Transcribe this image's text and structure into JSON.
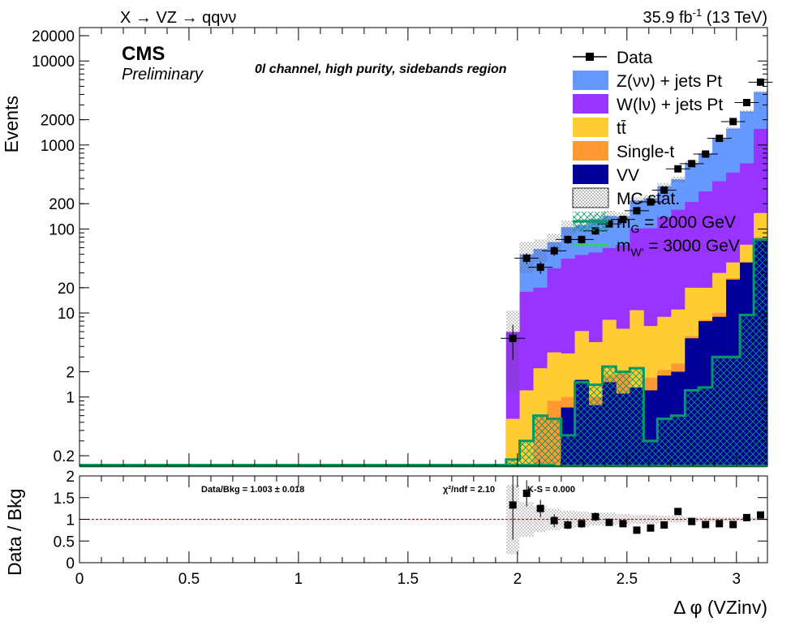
{
  "header": {
    "process": "X → VZ → qqνν",
    "lumi": "35.9 fb",
    "lumi_sup": "-1",
    "energy": " (13 TeV)"
  },
  "labels": {
    "cms": "CMS",
    "preliminary": "Preliminary",
    "channel": "0l channel, high purity, sidebands region",
    "fit_text": "Data/Bkg = 1.003 ± 0.018",
    "chi2_text": "χ²/ndf = 2.10",
    "ks_text": "K-S = 0.000"
  },
  "legend": [
    {
      "key": "data",
      "label": "Data",
      "color": "#000000",
      "kind": "marker"
    },
    {
      "key": "zvv",
      "label": "Z(νν) + jets Pt",
      "color": "#6699ff",
      "kind": "fill"
    },
    {
      "key": "wlv",
      "label": "W(lν) + jets Pt",
      "color": "#9933ff",
      "kind": "fill"
    },
    {
      "key": "tt",
      "label": "tt̄",
      "color": "#ffcc33",
      "kind": "fill"
    },
    {
      "key": "st",
      "label": "Single-t",
      "color": "#ff9933",
      "kind": "fill"
    },
    {
      "key": "vv",
      "label": "VV",
      "color": "#000099",
      "kind": "fill"
    },
    {
      "key": "mc",
      "label": "MC stat.",
      "color": "#888888",
      "kind": "hatch"
    },
    {
      "key": "sig1",
      "label": "m_G = 2000 GeV",
      "color": "#009966",
      "kind": "line"
    },
    {
      "key": "sig2",
      "label": "m_W' = 3000 GeV",
      "color": "#33cc66",
      "kind": "line"
    }
  ],
  "chart_data": [
    {
      "type": "area",
      "panel": "main",
      "xlabel": "Δ φ (VZinv)",
      "ylabel": "Events",
      "xlim": [
        0,
        3.1416
      ],
      "ylim": [
        0.15,
        25000
      ],
      "yscale": "log",
      "ytick_labels": [
        "0.2",
        "1",
        "2",
        "10",
        "20",
        "100",
        "200",
        "1000",
        "2000",
        "10000",
        "20000"
      ],
      "ytick_values": [
        0.2,
        1,
        2,
        10,
        20,
        100,
        200,
        1000,
        2000,
        10000,
        20000
      ],
      "bin_edges": [
        1.948,
        2.01,
        2.073,
        2.136,
        2.199,
        2.262,
        2.325,
        2.388,
        2.45,
        2.513,
        2.576,
        2.639,
        2.702,
        2.765,
        2.827,
        2.89,
        2.953,
        3.016,
        3.079,
        3.1416
      ],
      "stack_order": [
        "vv",
        "st",
        "tt",
        "wlv",
        "zvv"
      ],
      "series": [
        {
          "name": "VV",
          "key": "vv",
          "color": "#000099",
          "values": [
            0.1,
            0.1,
            0.1,
            0.1,
            0.75,
            1.6,
            0.8,
            1.5,
            1.1,
            1.3,
            1.2,
            1.8,
            2.0,
            5.0,
            8.0,
            9.0,
            25,
            40,
            75
          ]
        },
        {
          "name": "Single-t",
          "key": "st",
          "color": "#ff9933",
          "values": [
            0,
            0,
            0.5,
            0.8,
            0.25,
            0,
            0.2,
            0.3,
            0.9,
            0,
            0.5,
            0.3,
            0.5,
            0.3,
            0.3,
            1.0,
            1.0,
            0,
            5
          ]
        },
        {
          "name": "tt̄",
          "key": "tt",
          "color": "#ffcc33",
          "values": [
            0.45,
            1.1,
            1.6,
            2.5,
            2.3,
            4.5,
            3.5,
            6.5,
            4.5,
            9.5,
            5.3,
            6.9,
            8.5,
            14.7,
            11.7,
            20,
            14,
            25,
            75
          ]
        },
        {
          "name": "W(lν) + jets Pt",
          "key": "wlv",
          "color": "#9933ff",
          "values": [
            5.4,
            16.7,
            17.8,
            30.6,
            41,
            43,
            48,
            51,
            58,
            91,
            95,
            130,
            159,
            190,
            260,
            340,
            430,
            540,
            1400
          ]
        },
        {
          "name": "Z(νν) + jets Pt",
          "key": "zvv",
          "color": "#6699ff",
          "values": [
            0,
            32,
            38,
            36,
            61,
            62,
            79,
            84,
            77,
            117,
            130,
            185,
            220,
            400,
            510,
            810,
            1100,
            1900,
            2700
          ]
        }
      ],
      "data_points": {
        "name": "Data",
        "x": [
          1.979,
          2.042,
          2.105,
          2.168,
          2.23,
          2.293,
          2.356,
          2.419,
          2.482,
          2.545,
          2.608,
          2.67,
          2.733,
          2.796,
          2.859,
          2.922,
          2.985,
          3.047,
          3.11
        ],
        "y": [
          5,
          45,
          35,
          55,
          75,
          75,
          95,
          115,
          130,
          165,
          210,
          290,
          520,
          600,
          780,
          1200,
          1900,
          3200,
          5600
        ]
      },
      "mc_stat_rel_err": [
        0.8,
        0.4,
        0.3,
        0.25,
        0.2,
        0.18,
        0.15,
        0.15,
        0.12,
        0.1,
        0.1,
        0.08,
        0.08,
        0.06,
        0.05,
        0.05,
        0.04,
        0.04,
        0.03
      ],
      "signals": [
        {
          "name": "m_G = 2000 GeV",
          "key": "sig1",
          "color": "#009966",
          "values": [
            0.18,
            0.3,
            0.6,
            0.55,
            0.35,
            1.5,
            1.4,
            2.3,
            2.0,
            2.2,
            0.3,
            0.55,
            0.6,
            1.2,
            1.3,
            3.0,
            3.0,
            9.5,
            75
          ]
        },
        {
          "name": "m_W' = 3000 GeV",
          "key": "sig2",
          "color": "#33cc66",
          "values": [
            0,
            0,
            0,
            0,
            0,
            0,
            0,
            0,
            0,
            0,
            0,
            0,
            0,
            0,
            0,
            0,
            0,
            0,
            0
          ]
        }
      ]
    },
    {
      "type": "scatter",
      "panel": "ratio",
      "ylabel": "Data / Bkg",
      "xlim": [
        0,
        3.1416
      ],
      "ylim": [
        0,
        2
      ],
      "xtick_labels": [
        "0",
        "0.5",
        "1",
        "1.5",
        "2",
        "2.5",
        "3"
      ],
      "xtick_values": [
        0,
        0.5,
        1,
        1.5,
        2,
        2.5,
        3
      ],
      "ytick_labels": [
        "0",
        "0.5",
        "1",
        "1.5",
        "2"
      ],
      "ytick_values": [
        0,
        0.5,
        1,
        1.5,
        2
      ],
      "x": [
        1.979,
        2.042,
        2.105,
        2.168,
        2.23,
        2.293,
        2.356,
        2.419,
        2.482,
        2.545,
        2.608,
        2.67,
        2.733,
        2.796,
        2.859,
        2.922,
        2.985,
        3.047,
        3.11
      ],
      "y": [
        1.33,
        1.6,
        1.25,
        0.97,
        0.87,
        0.9,
        1.06,
        0.93,
        0.9,
        0.75,
        0.8,
        0.87,
        1.18,
        0.95,
        0.88,
        0.9,
        0.88,
        1.04,
        1.1
      ],
      "yerr": [
        0.8,
        0.3,
        0.2,
        0.15,
        0.1,
        0.1,
        0.1,
        0.08,
        0.08,
        0.06,
        0.06,
        0.06,
        0.05,
        0.04,
        0.04,
        0.03,
        0.03,
        0.03,
        0.03
      ],
      "reference_line": 1
    }
  ]
}
